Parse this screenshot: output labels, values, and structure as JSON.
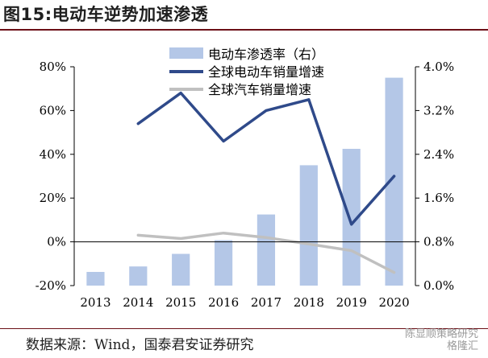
{
  "title": "图15:电动车逆势加速渗透",
  "source": "数据来源：Wind，国泰君安证券研究",
  "watermark": {
    "line1": "陈显顺策略研究",
    "line2": "格隆汇"
  },
  "colors": {
    "bar": "#b4c7e7",
    "ev_line": "#2f4a8a",
    "car_line": "#c0c0c0",
    "axis": "#000000",
    "rule": "#6b0f16"
  },
  "chart_data": {
    "type": "bar+line",
    "categories": [
      "2013",
      "2014",
      "2015",
      "2016",
      "2017",
      "2018",
      "2019",
      "2020"
    ],
    "left_axis": {
      "min": -20,
      "max": 80,
      "ticks": [
        80,
        60,
        40,
        20,
        0,
        -20
      ],
      "tick_labels": [
        "80%",
        "60%",
        "40%",
        "20%",
        "0%",
        "-20%"
      ]
    },
    "right_axis": {
      "min": 0,
      "max": 4.0,
      "ticks": [
        4.0,
        3.2,
        2.4,
        1.6,
        0.8,
        0.0
      ],
      "tick_labels": [
        "4.0%",
        "3.2%",
        "2.4%",
        "1.6%",
        "0.8%",
        "0.0%"
      ]
    },
    "series": [
      {
        "name": "电动车渗透率（右）",
        "type": "bar",
        "axis": "right",
        "values": [
          0.25,
          0.35,
          0.58,
          0.83,
          1.3,
          2.2,
          2.5,
          3.8
        ]
      },
      {
        "name": "全球电动车销量增速",
        "type": "line",
        "axis": "left",
        "values": [
          null,
          54,
          68,
          46,
          60,
          65,
          8,
          30
        ]
      },
      {
        "name": "全球汽车销量增速",
        "type": "line",
        "axis": "left",
        "values": [
          null,
          3,
          1.5,
          4,
          2,
          -1,
          -4,
          -14
        ]
      }
    ],
    "legend_position": "top-right"
  }
}
